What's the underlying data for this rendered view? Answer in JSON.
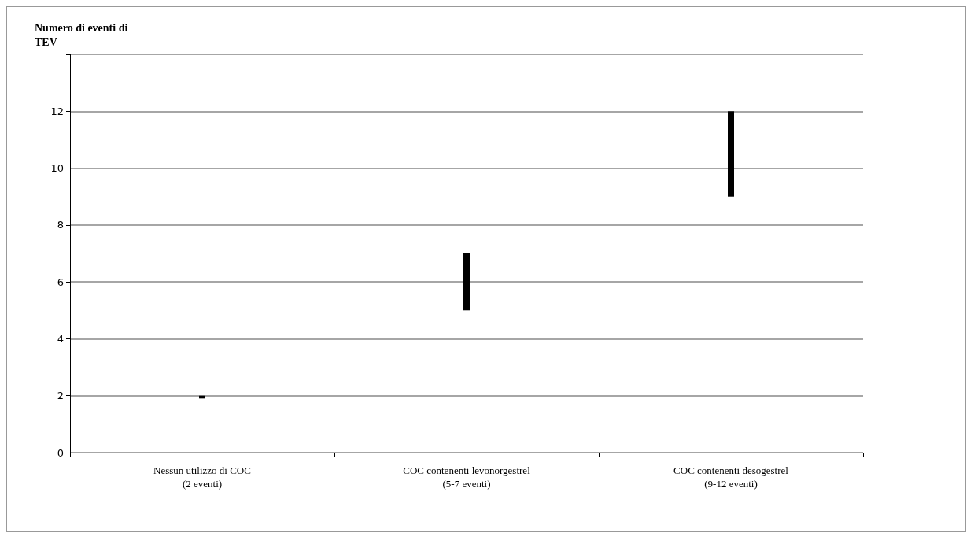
{
  "chart_data": {
    "type": "bar",
    "ylabel": "Numero di eventi di\nTEV",
    "categories": [
      "Nessun utilizzo di COC\n(2 eventi)",
      "COC contenenti levonorgestrel\n(5-7 eventi)",
      "COC contenenti desogestrel\n(9-12 eventi)"
    ],
    "base": [
      1.9,
      5,
      9
    ],
    "values": [
      0.1,
      2,
      3
    ],
    "color": "#000000",
    "ylim": [
      0,
      14
    ],
    "yticks": [
      0,
      2,
      4,
      6,
      8,
      10,
      12,
      {
        "value": 14,
        "label": null
      }
    ],
    "grid": "y"
  }
}
